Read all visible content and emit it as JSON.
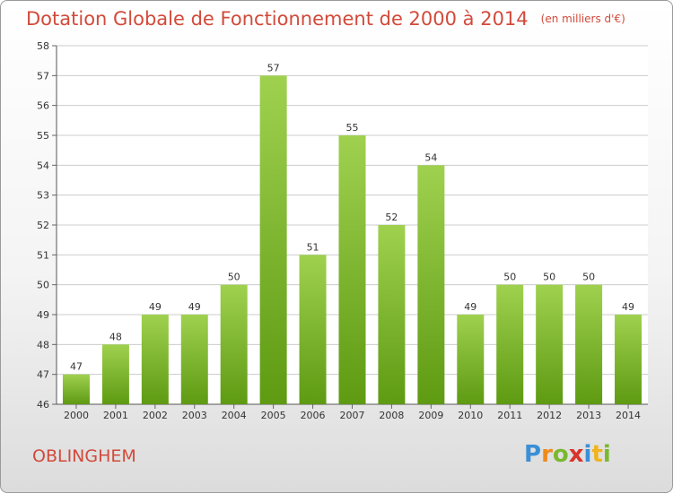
{
  "title": "Dotation Globale de Fonctionnement de 2000 à 2014",
  "subtitle": "(en milliers d'€)",
  "location": "OBLINGHEM",
  "logo_text": "Proxiti",
  "colors": {
    "title": "#d24a3a",
    "bar_top": "#9fd14f",
    "bar_bottom": "#5e9a12",
    "grid": "#cccccc"
  },
  "chart_data": {
    "type": "bar",
    "title": "Dotation Globale de Fonctionnement de 2000 à 2014",
    "subtitle": "(en milliers d'€)",
    "xlabel": "",
    "ylabel": "",
    "categories": [
      "2000",
      "2001",
      "2002",
      "2003",
      "2004",
      "2005",
      "2006",
      "2007",
      "2008",
      "2009",
      "2010",
      "2011",
      "2012",
      "2013",
      "2014"
    ],
    "values": [
      47,
      48,
      49,
      49,
      50,
      57,
      51,
      55,
      52,
      54,
      49,
      50,
      50,
      50,
      49
    ],
    "ylim": [
      46,
      58
    ],
    "yticks": [
      46,
      47,
      48,
      49,
      50,
      51,
      52,
      53,
      54,
      55,
      56,
      57,
      58
    ],
    "grid": true,
    "legend": "none",
    "data_labels": true
  }
}
